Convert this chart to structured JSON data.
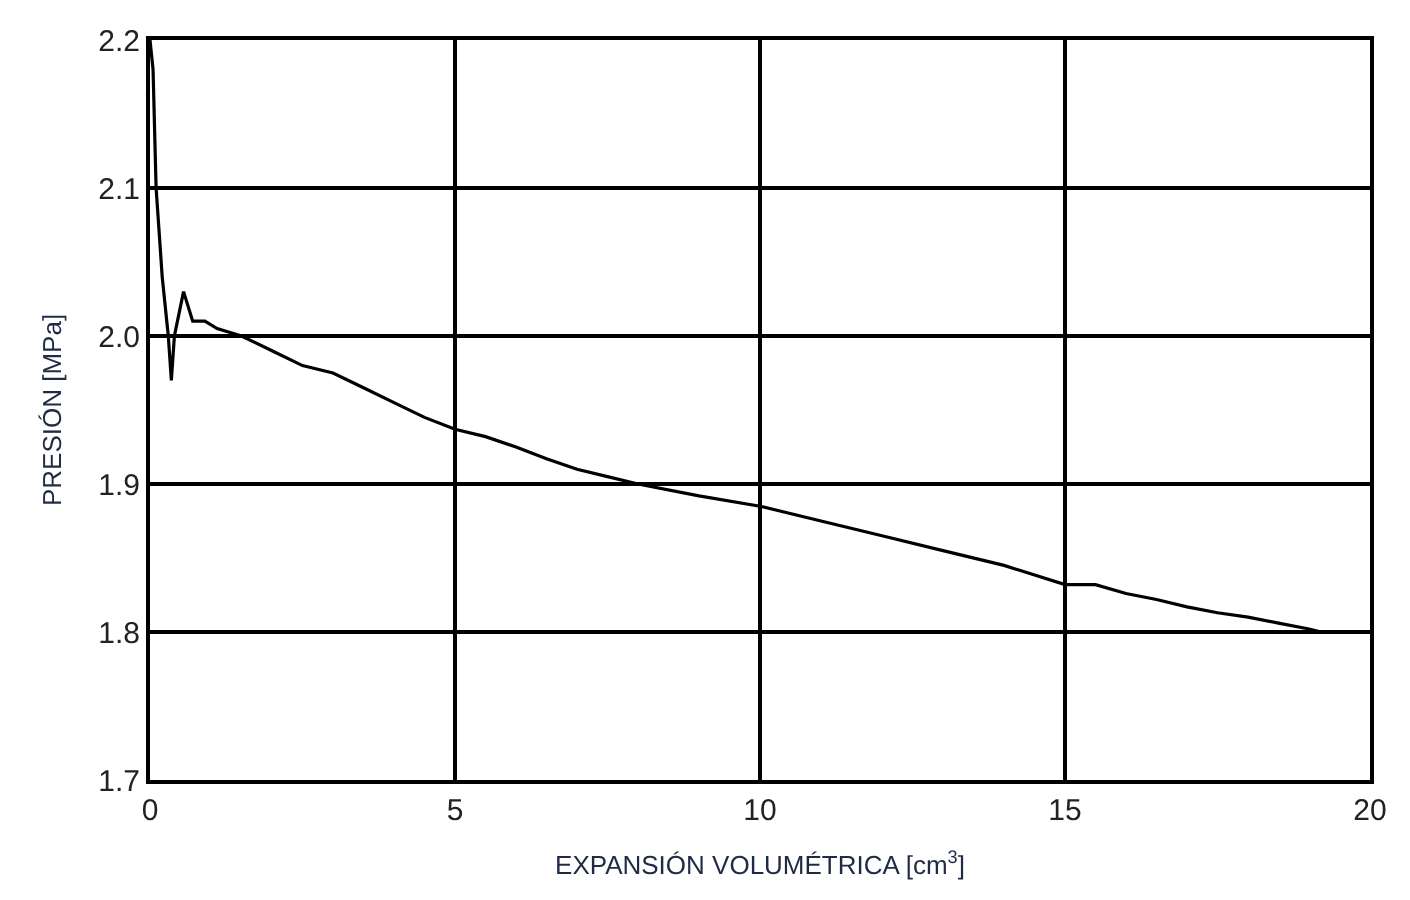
{
  "chart_data": {
    "type": "line",
    "xlabel": "EXPANSIÓN VOLUMÉTRICA [cm$^{3}$]",
    "ylabel": "PRESIÓN [MPa]",
    "x": [
      0,
      0.05,
      0.1,
      0.15,
      0.2,
      0.3,
      0.35,
      0.4,
      0.5,
      0.55,
      0.7,
      0.9,
      1.1,
      1.5,
      2,
      2.5,
      3,
      3.5,
      4,
      4.5,
      5,
      5.5,
      6,
      6.5,
      7,
      7.5,
      8,
      9,
      10,
      11,
      12,
      13,
      14,
      15,
      15.5,
      16,
      16.5,
      17,
      17.5,
      18,
      18.5,
      19,
      19.2
    ],
    "series": [
      {
        "color": "#000000",
        "values": [
          2.2,
          2.18,
          2.1,
          2.07,
          2.04,
          2.0,
          1.97,
          2.0,
          2.02,
          2.03,
          2.01,
          2.01,
          2.005,
          2.0,
          1.99,
          1.98,
          1.975,
          1.965,
          1.955,
          1.945,
          1.937,
          1.932,
          1.925,
          1.917,
          1.91,
          1.905,
          1.9,
          1.892,
          1.885,
          1.875,
          1.865,
          1.855,
          1.845,
          1.832,
          1.832,
          1.826,
          1.822,
          1.817,
          1.813,
          1.81,
          1.806,
          1.802,
          1.8
        ]
      }
    ],
    "xlim": [
      0,
      20
    ],
    "xticks": [
      0,
      5,
      10,
      15,
      20
    ],
    "ylim": [
      1.7,
      2.2
    ],
    "yticks": [
      1.7,
      1.8,
      1.9,
      {
        "value": 2.0,
        "label": "2.0"
      },
      2.1,
      2.2
    ],
    "grid": true,
    "marker": "none",
    "line_style": "solid"
  }
}
